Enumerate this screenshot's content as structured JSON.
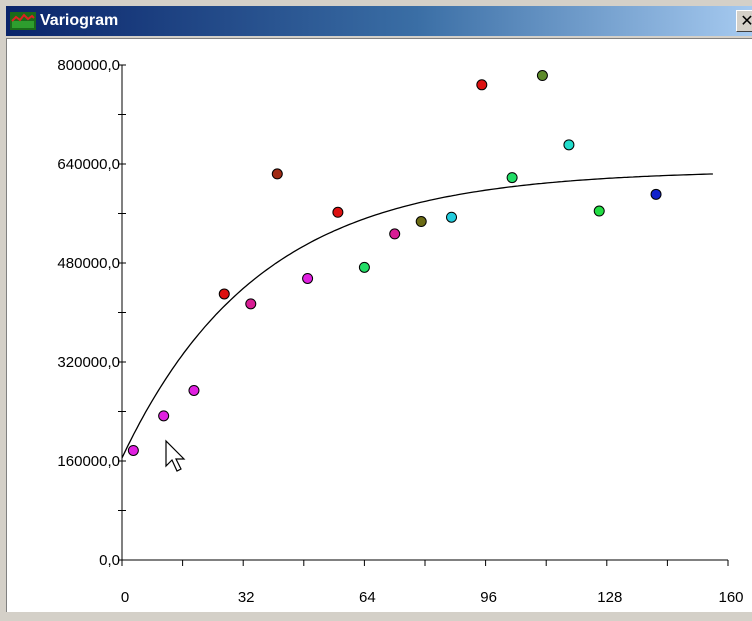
{
  "window": {
    "title": "Variogram",
    "close_glyph": "✕",
    "icon": "variogram-app-icon",
    "colors": {
      "titlebar_start": "#0a246a",
      "titlebar_end": "#a6caf0",
      "frame": "#d4d0c8"
    }
  },
  "chart_data": {
    "type": "scatter",
    "title": "",
    "xlabel": "",
    "ylabel": "",
    "xlim": [
      0,
      160
    ],
    "ylim": [
      0,
      800000
    ],
    "x_ticks": [
      0,
      32,
      64,
      96,
      128,
      160
    ],
    "x_tick_labels": [
      "0",
      "32",
      "64",
      "96",
      "128",
      "160"
    ],
    "y_ticks": [
      0,
      160000,
      320000,
      480000,
      640000,
      800000
    ],
    "y_tick_labels": [
      "0,0",
      "160000,0",
      "320000,0",
      "480000,0",
      "640000,0",
      "800000,0"
    ],
    "grid": false,
    "points": [
      {
        "x": 3,
        "y": 177000,
        "color": "#e020e0"
      },
      {
        "x": 11,
        "y": 233000,
        "color": "#e020e0"
      },
      {
        "x": 19,
        "y": 274000,
        "color": "#e020e0"
      },
      {
        "x": 27,
        "y": 430000,
        "color": "#dd1111"
      },
      {
        "x": 34,
        "y": 414000,
        "color": "#d81d94"
      },
      {
        "x": 41,
        "y": 624000,
        "color": "#a02a14"
      },
      {
        "x": 49,
        "y": 455000,
        "color": "#e020e0"
      },
      {
        "x": 57,
        "y": 562000,
        "color": "#dd1111"
      },
      {
        "x": 64,
        "y": 473000,
        "color": "#22dd66"
      },
      {
        "x": 72,
        "y": 527000,
        "color": "#d81d94"
      },
      {
        "x": 79,
        "y": 547000,
        "color": "#6b6b14"
      },
      {
        "x": 87,
        "y": 554000,
        "color": "#22ccdd"
      },
      {
        "x": 95,
        "y": 768000,
        "color": "#dd1111"
      },
      {
        "x": 103,
        "y": 618000,
        "color": "#22dd66"
      },
      {
        "x": 111,
        "y": 783000,
        "color": "#5d8a2a"
      },
      {
        "x": 118,
        "y": 671000,
        "color": "#22ddcc"
      },
      {
        "x": 126,
        "y": 564000,
        "color": "#22dd44"
      },
      {
        "x": 141,
        "y": 591000,
        "color": "#1122cc"
      }
    ],
    "model_curve": {
      "kind": "exponential",
      "nugget": 165000,
      "sill": 630000,
      "range": 36,
      "x_end": 156,
      "color": "#000000"
    }
  }
}
